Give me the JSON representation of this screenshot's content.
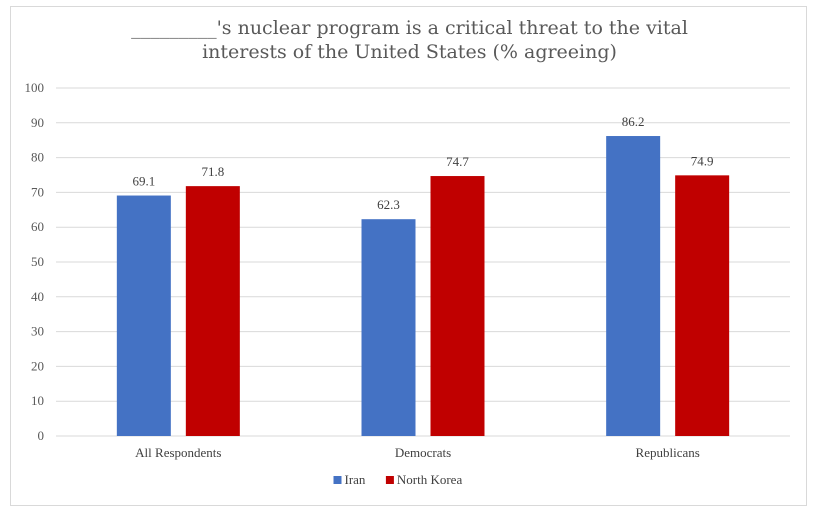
{
  "chart_data": {
    "type": "bar",
    "title_lines": [
      "_________'s nuclear program is a critical threat to the vital",
      "interests of the United States (% agreeing)"
    ],
    "categories": [
      "All Respondents",
      "Democrats",
      "Republicans"
    ],
    "series": [
      {
        "name": "Iran",
        "color": "#4472C4",
        "values": [
          69.1,
          62.3,
          86.2
        ]
      },
      {
        "name": "North Korea",
        "color": "#C00000",
        "values": [
          71.8,
          74.7,
          74.9
        ]
      }
    ],
    "ylim": [
      0,
      100
    ],
    "yticks": [
      0,
      10,
      20,
      30,
      40,
      50,
      60,
      70,
      80,
      90,
      100
    ],
    "grid": true,
    "legend": "bottom"
  }
}
